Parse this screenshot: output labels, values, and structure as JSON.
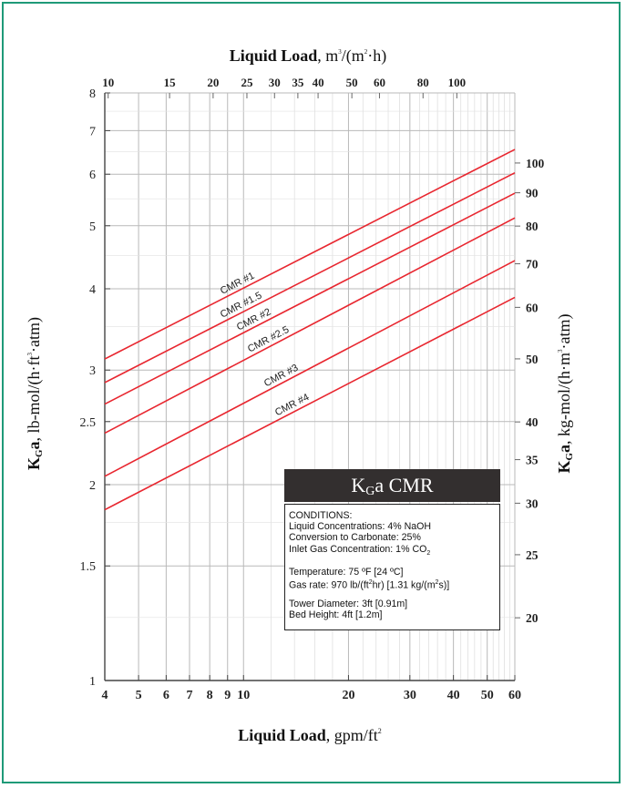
{
  "chart_data": {
    "type": "line",
    "title": "K_Ga CMR",
    "x_scale": "log",
    "y_scale": "log",
    "xlim": [
      4,
      60
    ],
    "ylim": [
      1,
      8
    ],
    "x_ticks": [
      4,
      5,
      6,
      7,
      8,
      9,
      10,
      20,
      30,
      40,
      50,
      60
    ],
    "x_tick_labels": [
      "4",
      "5",
      "6",
      "7",
      "8",
      "9",
      "10",
      "20",
      "30",
      "40",
      "50",
      "60"
    ],
    "y_ticks": [
      1,
      1.5,
      2,
      2.5,
      3,
      4,
      5,
      6,
      7,
      8
    ],
    "y_tick_labels": [
      "1",
      "1.5",
      "2",
      "2.5",
      "3",
      "4",
      "5",
      "6",
      "7",
      "8"
    ],
    "top_ticks": [
      10,
      15,
      20,
      25,
      30,
      35,
      40,
      50,
      60,
      80,
      100
    ],
    "top_tick_labels": [
      "10",
      "15",
      "20",
      "25",
      "30",
      "35",
      "40",
      "50",
      "60",
      "80",
      "100"
    ],
    "right_ticks": [
      20,
      25,
      30,
      35,
      40,
      50,
      60,
      70,
      80,
      90,
      100
    ],
    "right_tick_labels": [
      "20",
      "25",
      "30",
      "35",
      "40",
      "50",
      "60",
      "70",
      "80",
      "90",
      "100"
    ],
    "xlabel_bold": "Liquid Load",
    "xlabel_rest": ", gpm/ft",
    "xlabel_sup": "2",
    "top_xlabel_bold": "Liquid Load",
    "top_xlabel_rest": ",  m",
    "top_xlabel_sup": "3",
    "top_xlabel_tail": "/(m",
    "top_xlabel_sup2": "2",
    "top_xlabel_tail2": "·h)",
    "ylabel_bold_K": "K",
    "ylabel_bold_sub": "G",
    "ylabel_bold_a": "a",
    "ylabel_rest": ", lb-mol/(h·ft",
    "ylabel_sup": "3",
    "ylabel_tail": "·atm)",
    "right_ylabel_bold_K": "K",
    "right_ylabel_bold_sub": "G",
    "right_ylabel_bold_a": "a",
    "right_ylabel_rest": ", kg-mol/(h·m",
    "right_ylabel_sup": "3",
    "right_ylabel_tail": "·atm)",
    "grid": true,
    "series": [
      {
        "name": "CMR #1",
        "x": [
          4,
          60
        ],
        "y": [
          3.12,
          6.55
        ]
      },
      {
        "name": "CMR #1.5",
        "x": [
          4,
          60
        ],
        "y": [
          2.87,
          6.03
        ]
      },
      {
        "name": "CMR #2",
        "x": [
          4,
          60
        ],
        "y": [
          2.66,
          5.61
        ]
      },
      {
        "name": "CMR #2.5",
        "x": [
          4,
          60
        ],
        "y": [
          2.4,
          5.14
        ]
      },
      {
        "name": "CMR #3",
        "x": [
          4,
          60
        ],
        "y": [
          2.06,
          4.42
        ]
      },
      {
        "name": "CMR #4",
        "x": [
          4,
          60
        ],
        "y": [
          1.83,
          3.88
        ]
      }
    ],
    "series_color": "#e8262f"
  },
  "legend": {
    "title_K": "K",
    "title_sub": "G",
    "title_rest": "a CMR",
    "lines": [
      "CONDITIONS:",
      "Liquid Concentrations: 4% NaOH",
      "Conversion to Carbonate: 25%",
      "Inlet Gas Concentration: 1% CO",
      "Temperature: 75 ºF [24 ºC]",
      "Gas rate: 970 lb/(ft",
      "Tower Diameter: 3ft  [0.91m]",
      "Bed Height: 4ft  [1.2m]"
    ],
    "co2_sub": "2",
    "gas_rate_sup1": "2",
    "gas_rate_mid": "hr)  [1.31 kg/(m",
    "gas_rate_sup2": "2",
    "gas_rate_end": "s)]"
  }
}
